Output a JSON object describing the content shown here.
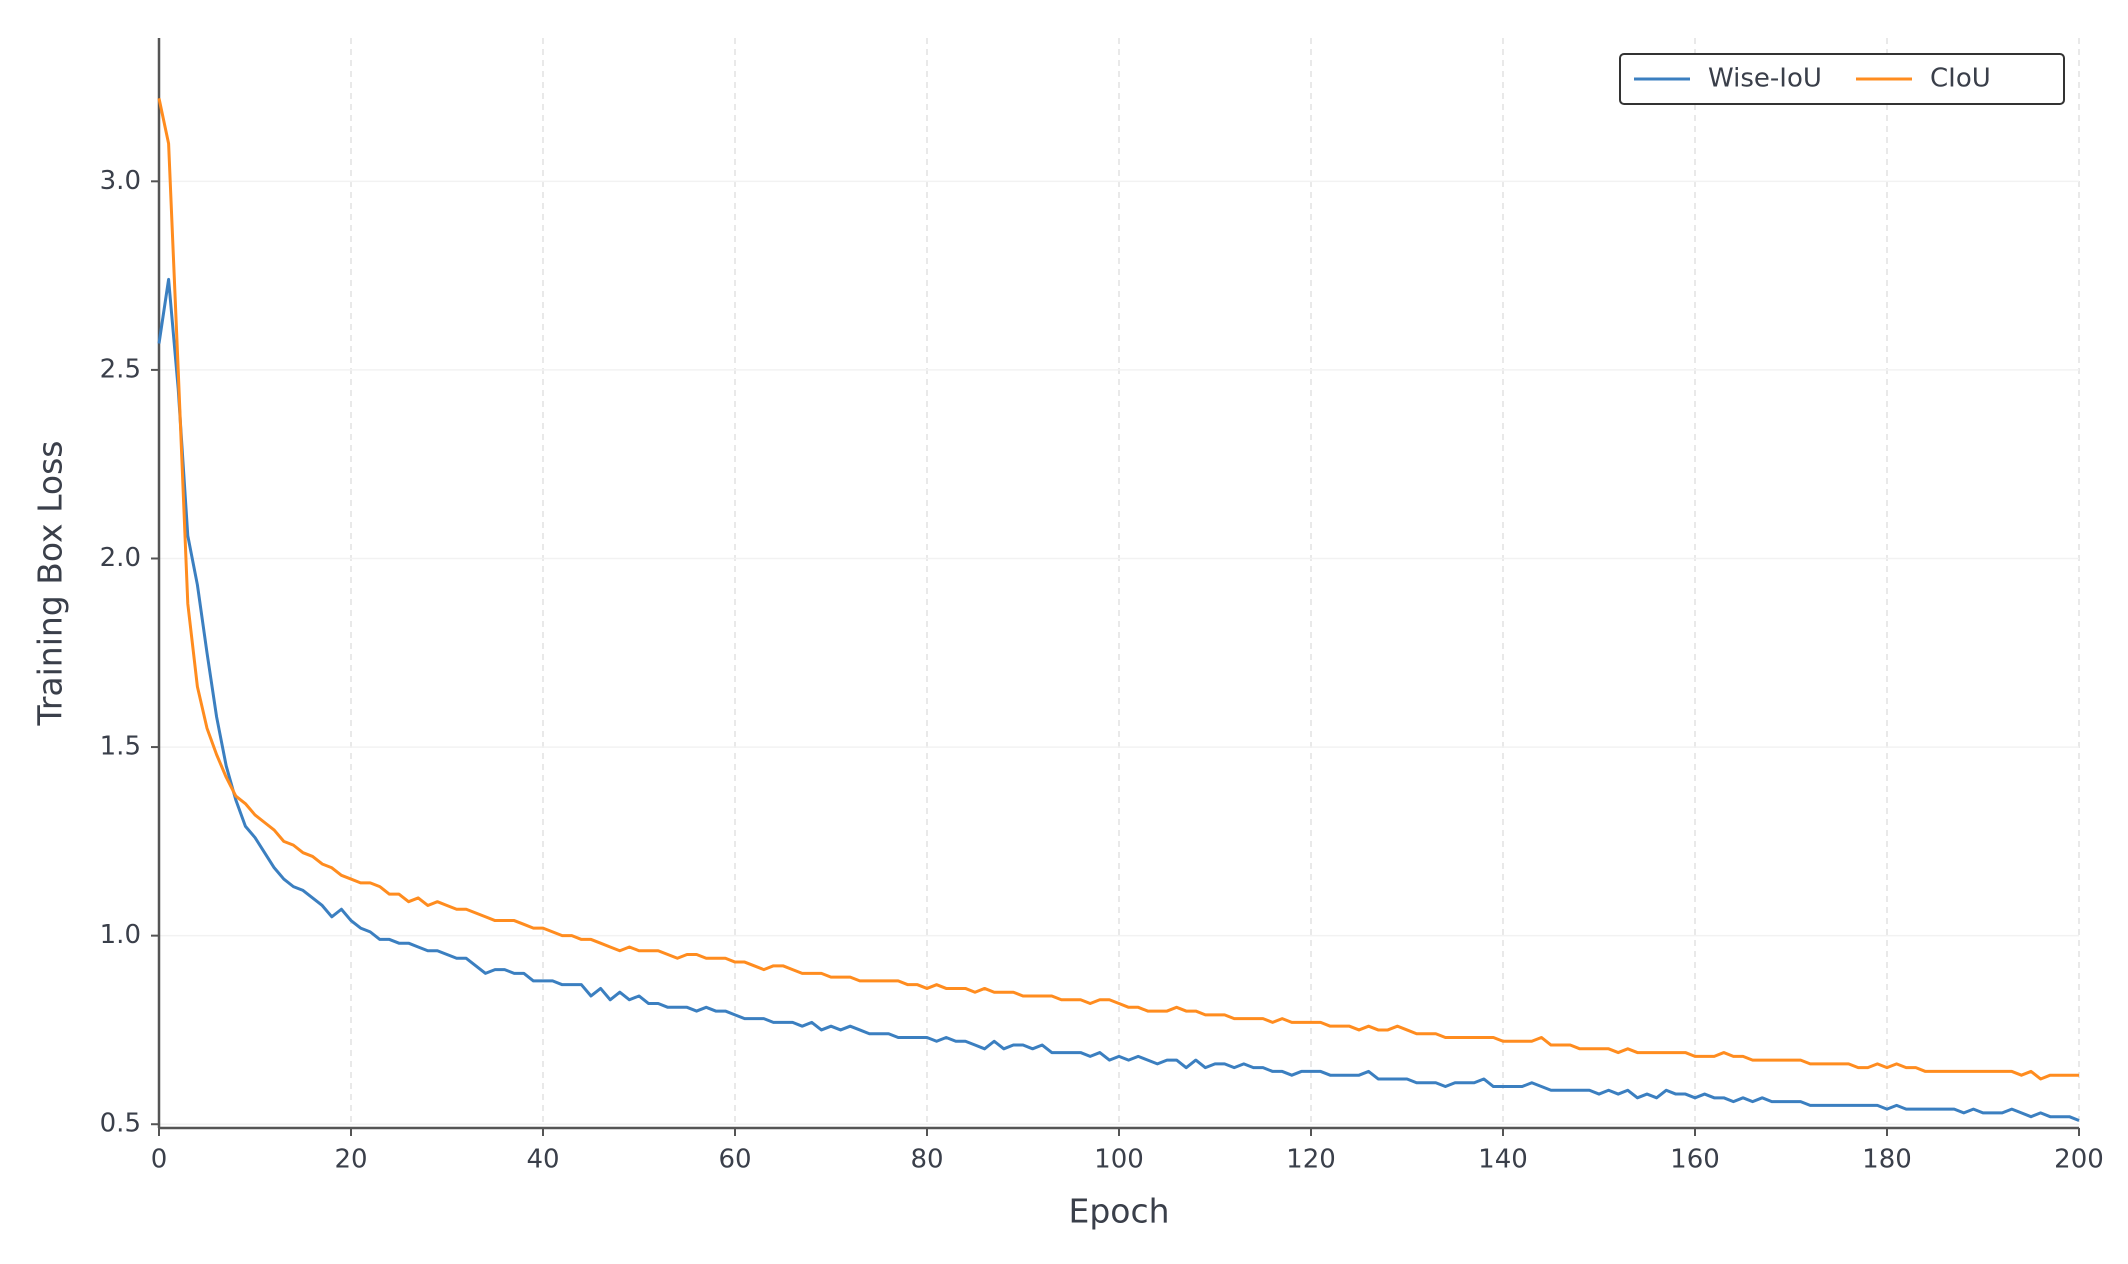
{
  "chart_data": {
    "type": "line",
    "x_label": "Epoch",
    "y_label": "Training Box Loss",
    "xlim": [
      0,
      200
    ],
    "ylim": [
      0.49,
      3.38
    ],
    "xticks": [
      0,
      20,
      40,
      60,
      80,
      100,
      120,
      140,
      160,
      180,
      200
    ],
    "yticks": [
      0.5,
      {
        "value": 1,
        "label": "1.0"
      },
      1.5,
      {
        "value": 2,
        "label": "2.0"
      },
      2.5,
      {
        "value": 3,
        "label": "3.0"
      }
    ],
    "grid": true,
    "legend": "upper right",
    "x": [
      0,
      1,
      2,
      3,
      4,
      5,
      6,
      7,
      8,
      9,
      10,
      11,
      12,
      13,
      14,
      15,
      16,
      17,
      18,
      19,
      20,
      21,
      22,
      23,
      24,
      25,
      26,
      27,
      28,
      29,
      30,
      31,
      32,
      33,
      34,
      35,
      36,
      37,
      38,
      39,
      40,
      41,
      42,
      43,
      44,
      45,
      46,
      47,
      48,
      49,
      50,
      51,
      52,
      53,
      54,
      55,
      56,
      57,
      58,
      59,
      60,
      61,
      62,
      63,
      64,
      65,
      66,
      67,
      68,
      69,
      70,
      71,
      72,
      73,
      74,
      75,
      76,
      77,
      78,
      79,
      80,
      81,
      82,
      83,
      84,
      85,
      86,
      87,
      88,
      89,
      90,
      91,
      92,
      93,
      94,
      95,
      96,
      97,
      98,
      99,
      100,
      101,
      102,
      103,
      104,
      105,
      106,
      107,
      108,
      109,
      110,
      111,
      112,
      113,
      114,
      115,
      116,
      117,
      118,
      119,
      120,
      121,
      122,
      123,
      124,
      125,
      126,
      127,
      128,
      129,
      130,
      131,
      132,
      133,
      134,
      135,
      136,
      137,
      138,
      139,
      140,
      141,
      142,
      143,
      144,
      145,
      146,
      147,
      148,
      149,
      150,
      151,
      152,
      153,
      154,
      155,
      156,
      157,
      158,
      159,
      160,
      161,
      162,
      163,
      164,
      165,
      166,
      167,
      168,
      169,
      170,
      171,
      172,
      173,
      174,
      175,
      176,
      177,
      178,
      179,
      180,
      181,
      182,
      183,
      184,
      185,
      186,
      187,
      188,
      189,
      190,
      191,
      192,
      193,
      194,
      195,
      196,
      197,
      198,
      199,
      200
    ],
    "series": [
      {
        "name": "Wise-IoU",
        "color": "#3b7fc0",
        "values": [
          2.57,
          2.74,
          2.45,
          2.06,
          1.93,
          1.75,
          1.58,
          1.45,
          1.36,
          1.29,
          1.26,
          1.22,
          1.18,
          1.15,
          1.13,
          1.12,
          1.1,
          1.08,
          1.05,
          1.07,
          1.04,
          1.02,
          1.01,
          0.99,
          0.99,
          0.98,
          0.98,
          0.97,
          0.96,
          0.96,
          0.95,
          0.94,
          0.94,
          0.92,
          0.9,
          0.91,
          0.91,
          0.9,
          0.9,
          0.88,
          0.88,
          0.88,
          0.87,
          0.87,
          0.87,
          0.84,
          0.86,
          0.83,
          0.85,
          0.83,
          0.84,
          0.82,
          0.82,
          0.81,
          0.81,
          0.81,
          0.8,
          0.81,
          0.8,
          0.8,
          0.79,
          0.78,
          0.78,
          0.78,
          0.77,
          0.77,
          0.77,
          0.76,
          0.77,
          0.75,
          0.76,
          0.75,
          0.76,
          0.75,
          0.74,
          0.74,
          0.74,
          0.73,
          0.73,
          0.73,
          0.73,
          0.72,
          0.73,
          0.72,
          0.72,
          0.71,
          0.7,
          0.72,
          0.7,
          0.71,
          0.71,
          0.7,
          0.71,
          0.69,
          0.69,
          0.69,
          0.69,
          0.68,
          0.69,
          0.67,
          0.68,
          0.67,
          0.68,
          0.67,
          0.66,
          0.67,
          0.67,
          0.65,
          0.67,
          0.65,
          0.66,
          0.66,
          0.65,
          0.66,
          0.65,
          0.65,
          0.64,
          0.64,
          0.63,
          0.64,
          0.64,
          0.64,
          0.63,
          0.63,
          0.63,
          0.63,
          0.64,
          0.62,
          0.62,
          0.62,
          0.62,
          0.61,
          0.61,
          0.61,
          0.6,
          0.61,
          0.61,
          0.61,
          0.62,
          0.6,
          0.6,
          0.6,
          0.6,
          0.61,
          0.6,
          0.59,
          0.59,
          0.59,
          0.59,
          0.59,
          0.58,
          0.59,
          0.58,
          0.59,
          0.57,
          0.58,
          0.57,
          0.59,
          0.58,
          0.58,
          0.57,
          0.58,
          0.57,
          0.57,
          0.56,
          0.57,
          0.56,
          0.57,
          0.56,
          0.56,
          0.56,
          0.56,
          0.55,
          0.55,
          0.55,
          0.55,
          0.55,
          0.55,
          0.55,
          0.55,
          0.54,
          0.55,
          0.54,
          0.54,
          0.54,
          0.54,
          0.54,
          0.54,
          0.53,
          0.54,
          0.53,
          0.53,
          0.53,
          0.54,
          0.53,
          0.52,
          0.53,
          0.52,
          0.52,
          0.52,
          0.51
        ]
      },
      {
        "name": "CIoU",
        "color": "#ff8c1f",
        "values": [
          3.22,
          3.1,
          2.5,
          1.88,
          1.66,
          1.55,
          1.48,
          1.42,
          1.37,
          1.35,
          1.32,
          1.3,
          1.28,
          1.25,
          1.24,
          1.22,
          1.21,
          1.19,
          1.18,
          1.16,
          1.15,
          1.14,
          1.14,
          1.13,
          1.11,
          1.11,
          1.09,
          1.1,
          1.08,
          1.09,
          1.08,
          1.07,
          1.07,
          1.06,
          1.05,
          1.04,
          1.04,
          1.04,
          1.03,
          1.02,
          1.02,
          1.01,
          1.0,
          1.0,
          0.99,
          0.99,
          0.98,
          0.97,
          0.96,
          0.97,
          0.96,
          0.96,
          0.96,
          0.95,
          0.94,
          0.95,
          0.95,
          0.94,
          0.94,
          0.94,
          0.93,
          0.93,
          0.92,
          0.91,
          0.92,
          0.92,
          0.91,
          0.9,
          0.9,
          0.9,
          0.89,
          0.89,
          0.89,
          0.88,
          0.88,
          0.88,
          0.88,
          0.88,
          0.87,
          0.87,
          0.86,
          0.87,
          0.86,
          0.86,
          0.86,
          0.85,
          0.86,
          0.85,
          0.85,
          0.85,
          0.84,
          0.84,
          0.84,
          0.84,
          0.83,
          0.83,
          0.83,
          0.82,
          0.83,
          0.83,
          0.82,
          0.81,
          0.81,
          0.8,
          0.8,
          0.8,
          0.81,
          0.8,
          0.8,
          0.79,
          0.79,
          0.79,
          0.78,
          0.78,
          0.78,
          0.78,
          0.77,
          0.78,
          0.77,
          0.77,
          0.77,
          0.77,
          0.76,
          0.76,
          0.76,
          0.75,
          0.76,
          0.75,
          0.75,
          0.76,
          0.75,
          0.74,
          0.74,
          0.74,
          0.73,
          0.73,
          0.73,
          0.73,
          0.73,
          0.73,
          0.72,
          0.72,
          0.72,
          0.72,
          0.73,
          0.71,
          0.71,
          0.71,
          0.7,
          0.7,
          0.7,
          0.7,
          0.69,
          0.7,
          0.69,
          0.69,
          0.69,
          0.69,
          0.69,
          0.69,
          0.68,
          0.68,
          0.68,
          0.69,
          0.68,
          0.68,
          0.67,
          0.67,
          0.67,
          0.67,
          0.67,
          0.67,
          0.66,
          0.66,
          0.66,
          0.66,
          0.66,
          0.65,
          0.65,
          0.66,
          0.65,
          0.66,
          0.65,
          0.65,
          0.64,
          0.64,
          0.64,
          0.64,
          0.64,
          0.64,
          0.64,
          0.64,
          0.64,
          0.64,
          0.63,
          0.64,
          0.62,
          0.63,
          0.63,
          0.63,
          0.63
        ]
      }
    ]
  }
}
